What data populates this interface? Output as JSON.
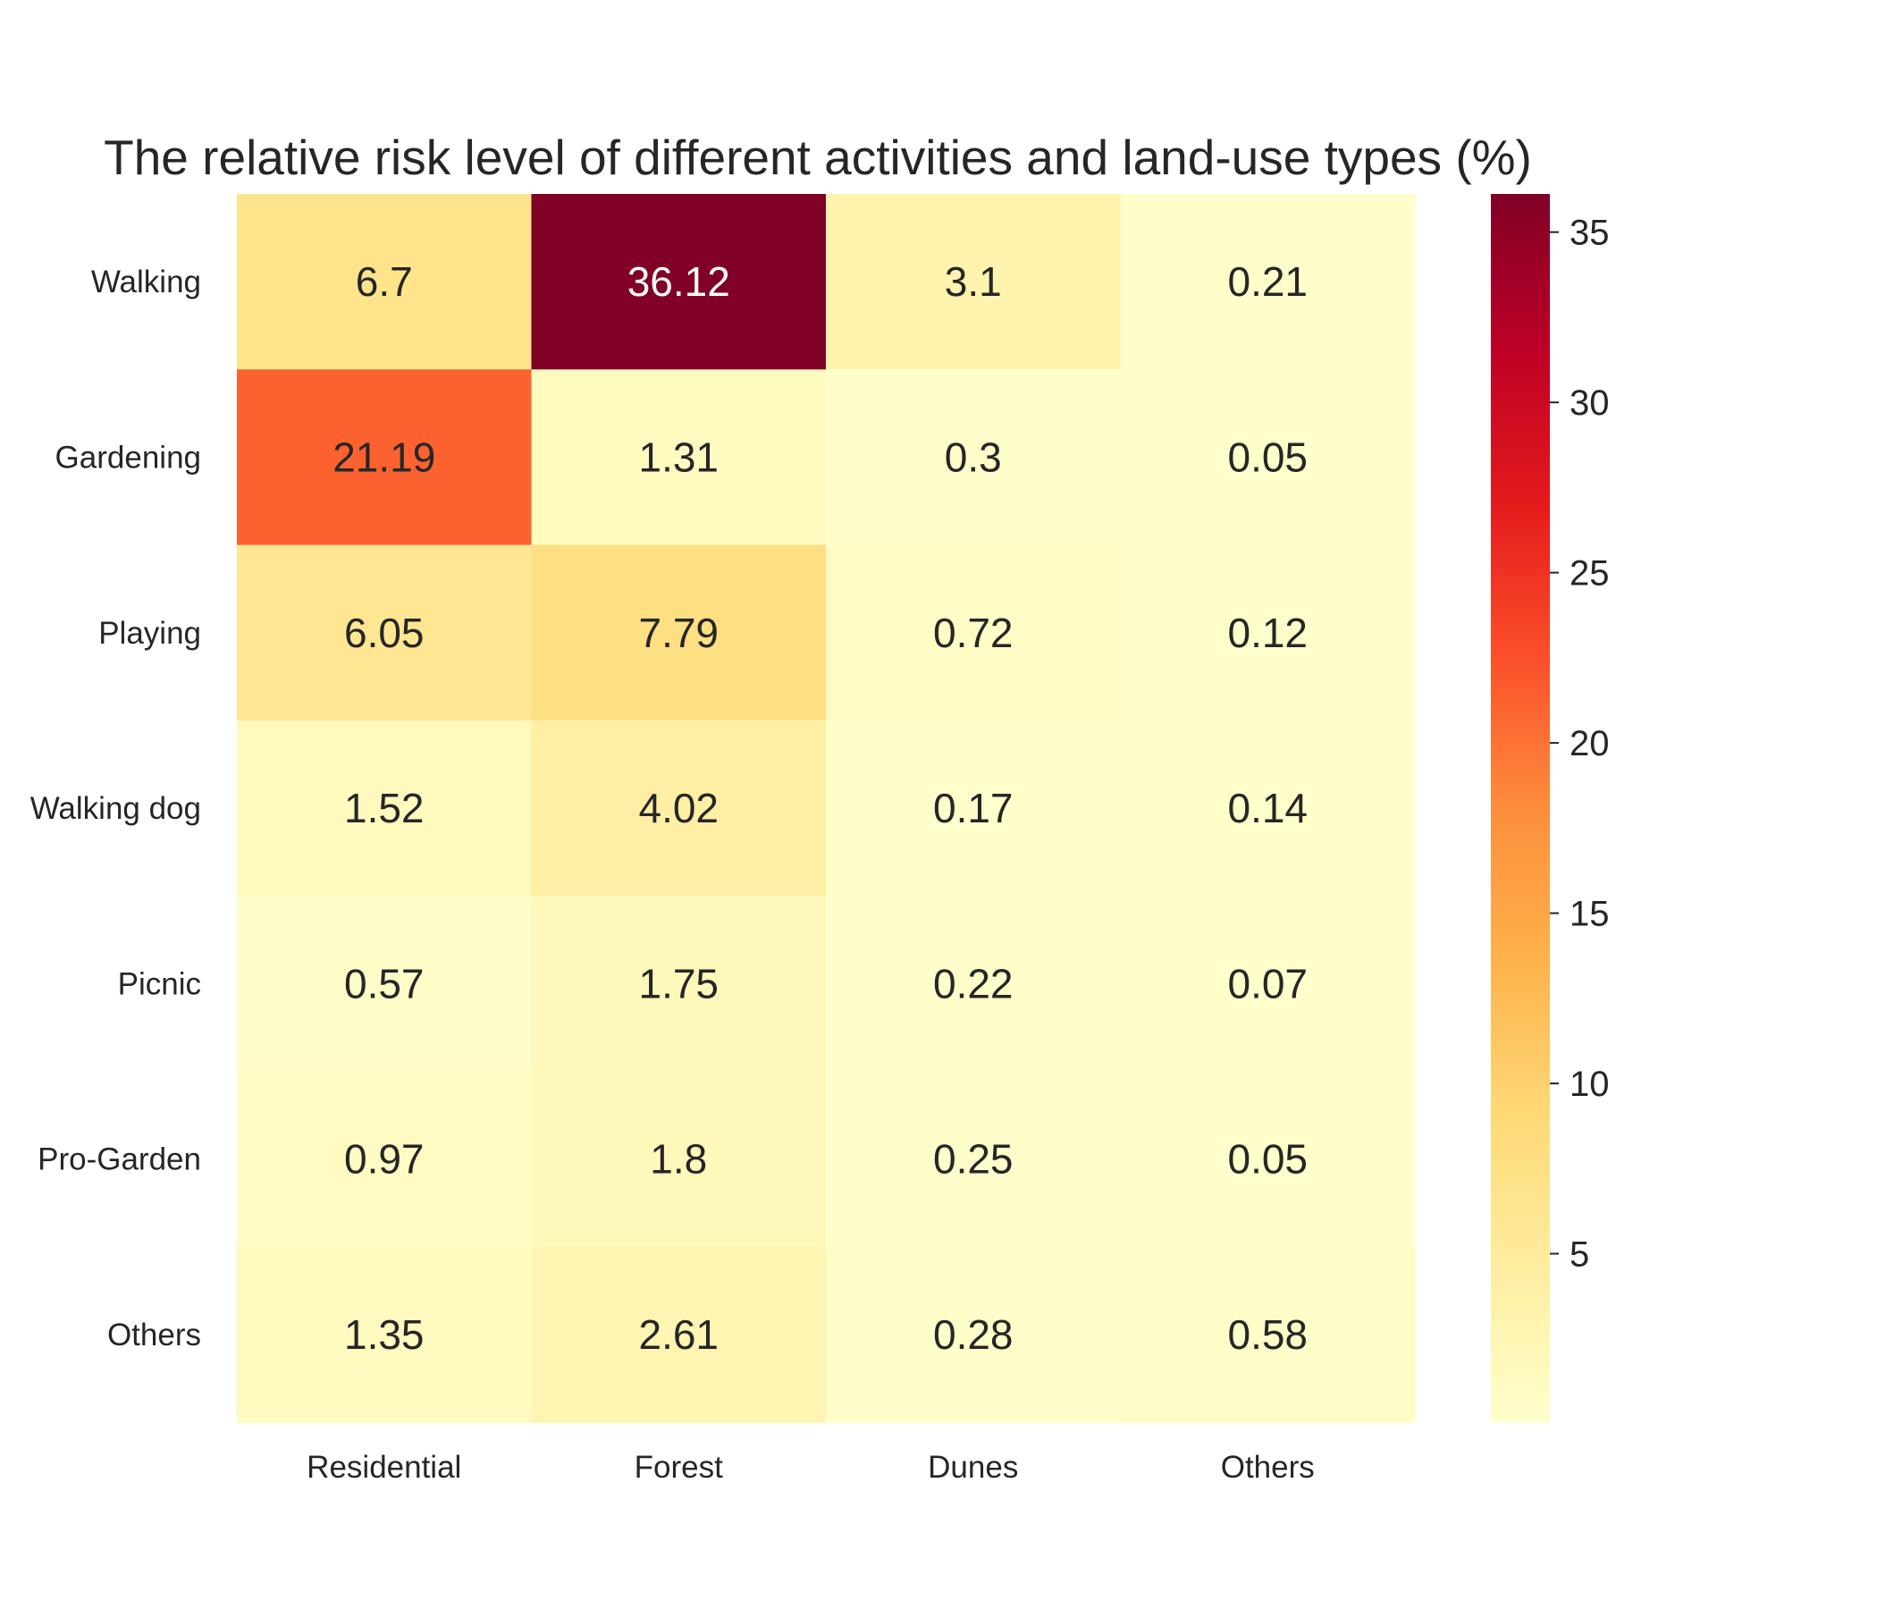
{
  "chart_data": {
    "type": "heatmap",
    "title": "The relative risk level of different activities and land-use types (%)",
    "xlabel": "",
    "ylabel": "",
    "rows": [
      "Walking",
      "Gardening",
      "Playing",
      "Walking dog",
      "Picnic",
      "Pro-Garden",
      "Others"
    ],
    "columns": [
      "Residential",
      "Forest",
      "Dunes",
      "Others"
    ],
    "values": [
      [
        6.7,
        36.12,
        3.1,
        0.21
      ],
      [
        21.19,
        1.31,
        0.3,
        0.05
      ],
      [
        6.05,
        7.79,
        0.72,
        0.12
      ],
      [
        1.52,
        4.02,
        0.17,
        0.14
      ],
      [
        0.57,
        1.75,
        0.22,
        0.07
      ],
      [
        0.97,
        1.8,
        0.25,
        0.05
      ],
      [
        1.35,
        2.61,
        0.28,
        0.58
      ]
    ],
    "colormap": "YlOrRd",
    "colorbar": {
      "min": 0.05,
      "max": 36.12,
      "ticks": [
        5,
        10,
        15,
        20,
        25,
        30,
        35
      ]
    },
    "annotate": true,
    "grid": false,
    "legend": "colorbar-right"
  }
}
